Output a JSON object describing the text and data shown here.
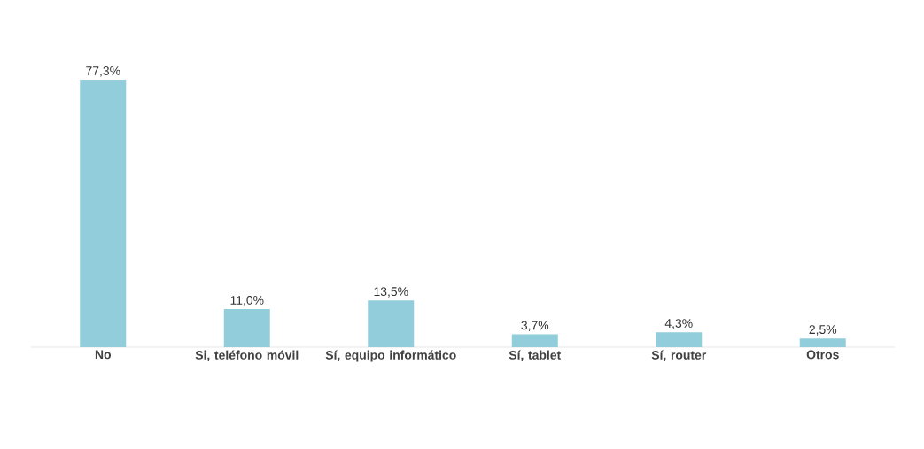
{
  "chart_data": {
    "type": "bar",
    "categories": [
      "No",
      "Si, teléfono móvil",
      "Sí, equipo informático",
      "Sí, tablet",
      "Sí, router",
      "Otros"
    ],
    "values": [
      77.3,
      11.0,
      13.5,
      3.7,
      4.3,
      2.5
    ],
    "value_labels": [
      "77,3%",
      "11,0%",
      "13,5%",
      "3,7%",
      "4,3%",
      "2,5%"
    ],
    "color": "#92cddc"
  }
}
